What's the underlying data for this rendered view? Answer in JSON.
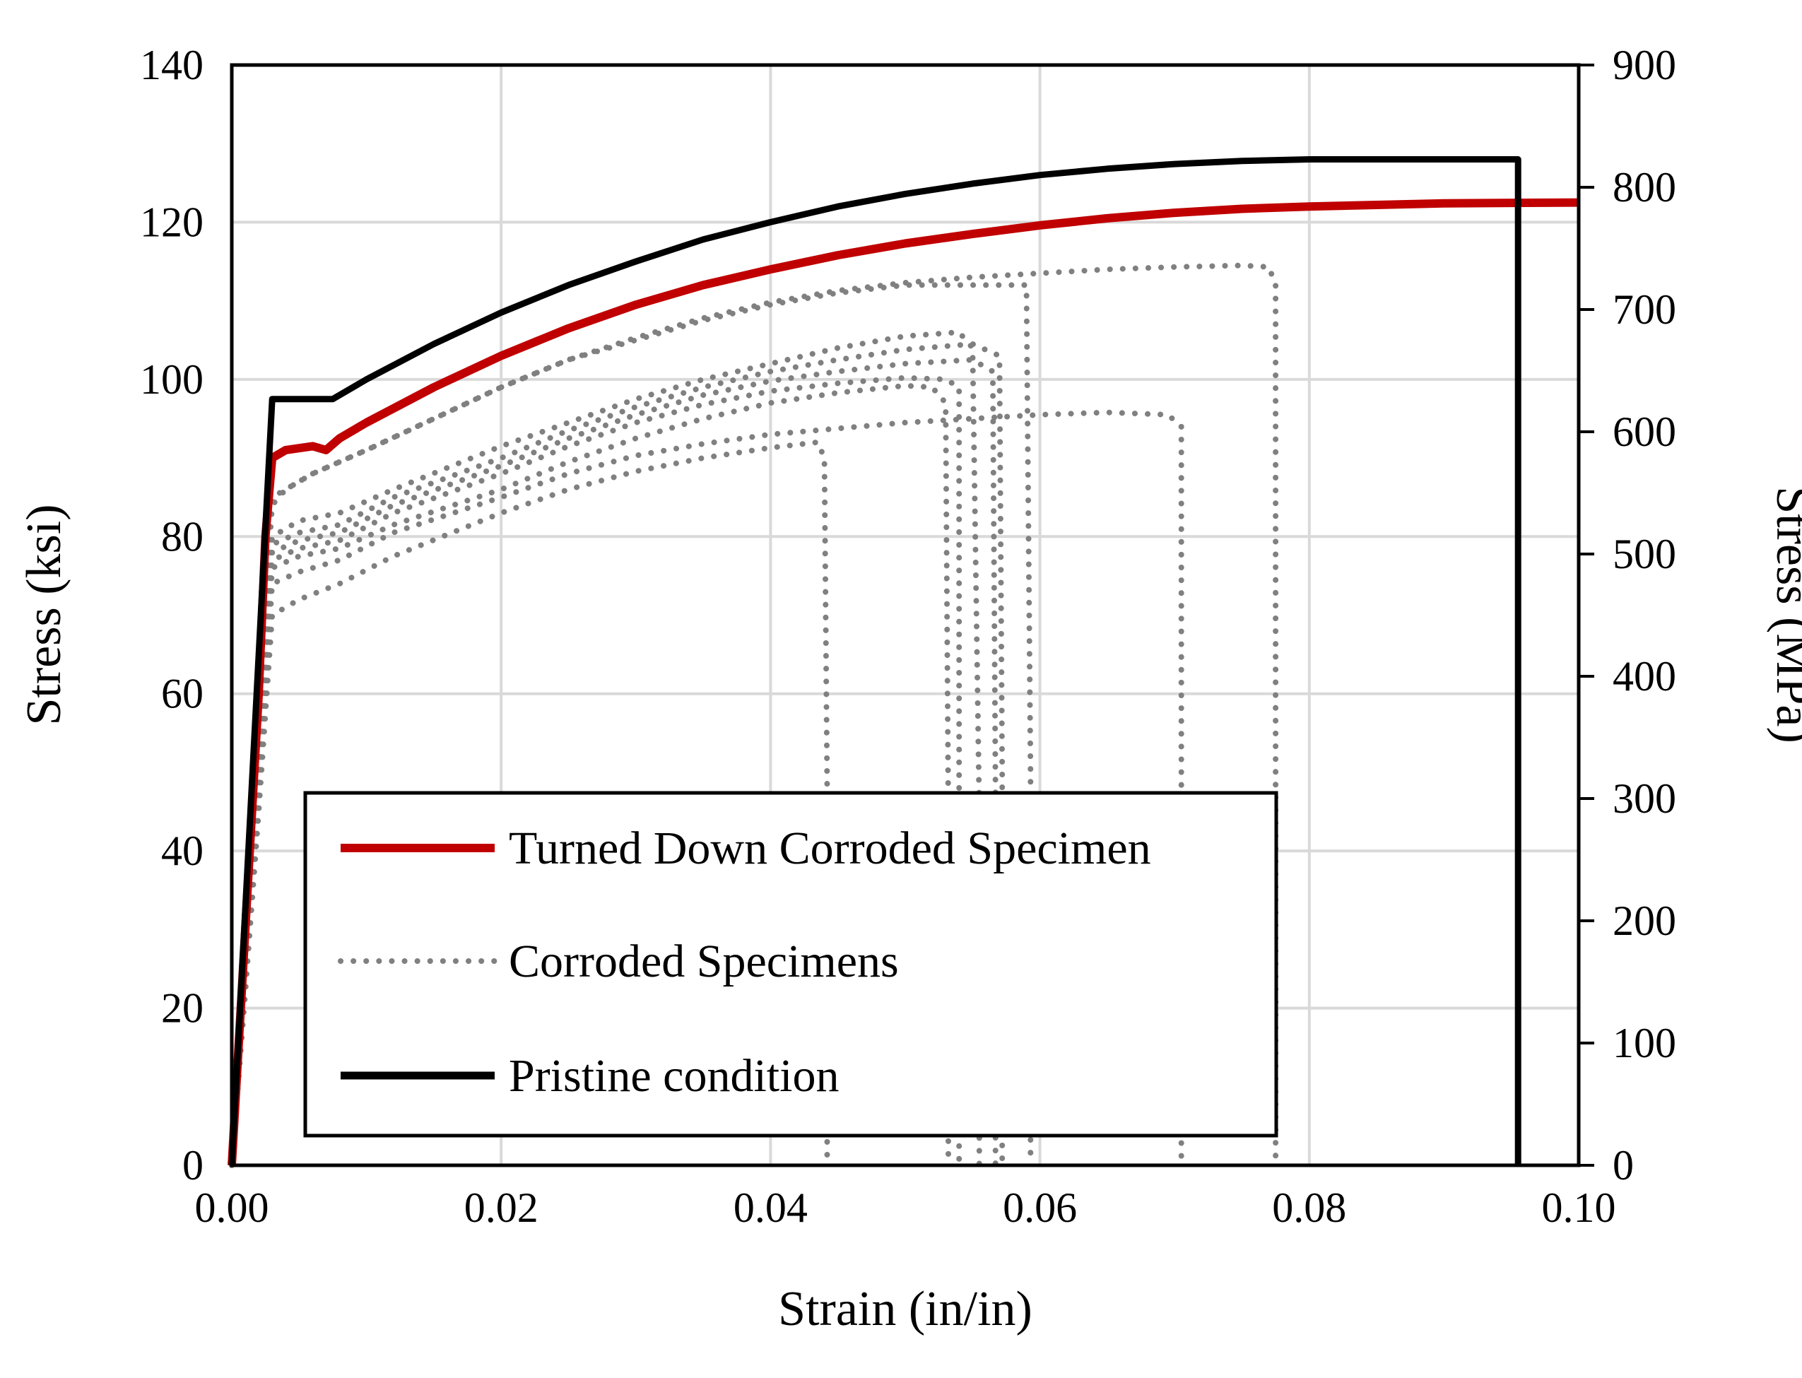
{
  "chart_data": {
    "type": "line",
    "title": "",
    "xlabel": "Strain (in/in)",
    "ylabel": "Stress (ksi)",
    "y2label": "Stress (MPa)",
    "xlim": [
      0,
      0.1
    ],
    "ylim": [
      0,
      140
    ],
    "y2lim": [
      0,
      900
    ],
    "grid": true,
    "legend_position": "bottom-left",
    "x_ticks": [
      "0.00",
      "0.02",
      "0.04",
      "0.06",
      "0.08",
      "0.10"
    ],
    "y_ticks": [
      "0",
      "20",
      "40",
      "60",
      "80",
      "100",
      "120",
      "140"
    ],
    "y2_ticks": [
      "0",
      "100",
      "200",
      "300",
      "400",
      "500",
      "600",
      "700",
      "800",
      "900"
    ],
    "series": [
      {
        "name": "Turned Down Corroded Specimen",
        "color": "#c00000",
        "style": "solid",
        "points": [
          [
            0,
            0
          ],
          [
            0.001,
            30
          ],
          [
            0.002,
            60
          ],
          [
            0.0025,
            80
          ],
          [
            0.003,
            90
          ],
          [
            0.004,
            91
          ],
          [
            0.006,
            91.5
          ],
          [
            0.007,
            91
          ],
          [
            0.008,
            92.5
          ],
          [
            0.01,
            94.5
          ],
          [
            0.015,
            99
          ],
          [
            0.02,
            103
          ],
          [
            0.025,
            106.5
          ],
          [
            0.03,
            109.5
          ],
          [
            0.035,
            112
          ],
          [
            0.04,
            114
          ],
          [
            0.045,
            115.8
          ],
          [
            0.05,
            117.3
          ],
          [
            0.055,
            118.5
          ],
          [
            0.06,
            119.6
          ],
          [
            0.065,
            120.5
          ],
          [
            0.07,
            121.2
          ],
          [
            0.075,
            121.7
          ],
          [
            0.08,
            122
          ],
          [
            0.085,
            122.2
          ],
          [
            0.09,
            122.4
          ],
          [
            0.1,
            122.5
          ]
        ]
      },
      {
        "name": "Corroded Specimens",
        "color": "#808080",
        "style": "dotted",
        "points": [
          [
            0,
            0
          ],
          [
            0.001,
            30
          ],
          [
            0.002,
            60
          ],
          [
            0.003,
            84
          ],
          [
            0.004,
            86
          ],
          [
            0.006,
            88
          ],
          [
            0.01,
            91
          ],
          [
            0.015,
            95
          ],
          [
            0.02,
            99
          ],
          [
            0.025,
            102.5
          ],
          [
            0.03,
            105
          ],
          [
            0.035,
            107.5
          ],
          [
            0.04,
            109.5
          ],
          [
            0.045,
            111
          ],
          [
            0.05,
            112
          ],
          [
            0.055,
            112
          ],
          [
            0.059,
            112
          ],
          [
            0.0593,
            50
          ],
          [
            0.0593,
            0
          ]
        ]
      },
      {
        "name": "",
        "color": "#808080",
        "style": "dotted",
        "points": [
          [
            0,
            0
          ],
          [
            0.001,
            30
          ],
          [
            0.002,
            55
          ],
          [
            0.003,
            80
          ],
          [
            0.005,
            82
          ],
          [
            0.008,
            83
          ],
          [
            0.012,
            86
          ],
          [
            0.02,
            91.5
          ],
          [
            0.025,
            94.5
          ],
          [
            0.03,
            97.5
          ],
          [
            0.035,
            100
          ],
          [
            0.04,
            102
          ],
          [
            0.045,
            104
          ],
          [
            0.05,
            105.5
          ],
          [
            0.054,
            106
          ],
          [
            0.055,
            104
          ],
          [
            0.0555,
            45
          ],
          [
            0.0555,
            0
          ]
        ]
      },
      {
        "name": "",
        "color": "#808080",
        "style": "dotted",
        "points": [
          [
            0,
            0
          ],
          [
            0.001,
            28
          ],
          [
            0.002,
            55
          ],
          [
            0.003,
            79
          ],
          [
            0.005,
            80.5
          ],
          [
            0.008,
            81.5
          ],
          [
            0.012,
            85
          ],
          [
            0.02,
            90
          ],
          [
            0.025,
            93.5
          ],
          [
            0.03,
            96.5
          ],
          [
            0.035,
            99
          ],
          [
            0.04,
            101
          ],
          [
            0.045,
            102.5
          ],
          [
            0.05,
            103.8
          ],
          [
            0.055,
            104.5
          ],
          [
            0.057,
            103
          ],
          [
            0.0572,
            50
          ],
          [
            0.0572,
            0
          ]
        ]
      },
      {
        "name": "",
        "color": "#808080",
        "style": "dotted",
        "points": [
          [
            0,
            0
          ],
          [
            0.001,
            28
          ],
          [
            0.002,
            52
          ],
          [
            0.003,
            78
          ],
          [
            0.005,
            79.5
          ],
          [
            0.008,
            80.5
          ],
          [
            0.012,
            84
          ],
          [
            0.02,
            89
          ],
          [
            0.025,
            92.5
          ],
          [
            0.03,
            95.5
          ],
          [
            0.035,
            98
          ],
          [
            0.04,
            99.8
          ],
          [
            0.045,
            101
          ],
          [
            0.05,
            102
          ],
          [
            0.055,
            102.5
          ],
          [
            0.0565,
            101
          ],
          [
            0.0567,
            48
          ],
          [
            0.0567,
            0
          ]
        ]
      },
      {
        "name": "",
        "color": "#808080",
        "style": "dotted",
        "points": [
          [
            0,
            0
          ],
          [
            0.001,
            26
          ],
          [
            0.002,
            50
          ],
          [
            0.003,
            77
          ],
          [
            0.005,
            78.5
          ],
          [
            0.008,
            79.5
          ],
          [
            0.012,
            83
          ],
          [
            0.02,
            88
          ],
          [
            0.025,
            91.5
          ],
          [
            0.03,
            94.5
          ],
          [
            0.035,
            96.8
          ],
          [
            0.04,
            98.5
          ],
          [
            0.045,
            99.5
          ],
          [
            0.05,
            100.2
          ],
          [
            0.053,
            100
          ],
          [
            0.054,
            99
          ],
          [
            0.054,
            48
          ],
          [
            0.054,
            0
          ]
        ]
      },
      {
        "name": "",
        "color": "#808080",
        "style": "dotted",
        "points": [
          [
            0,
            0
          ],
          [
            0.001,
            24
          ],
          [
            0.002,
            48
          ],
          [
            0.003,
            76
          ],
          [
            0.005,
            77.5
          ],
          [
            0.008,
            78.5
          ],
          [
            0.012,
            81.5
          ],
          [
            0.02,
            86
          ],
          [
            0.025,
            89.5
          ],
          [
            0.03,
            92.5
          ],
          [
            0.035,
            95
          ],
          [
            0.04,
            97
          ],
          [
            0.045,
            98.3
          ],
          [
            0.05,
            99.2
          ],
          [
            0.052,
            99
          ],
          [
            0.053,
            97
          ],
          [
            0.0532,
            45
          ],
          [
            0.0532,
            0
          ]
        ]
      },
      {
        "name": "",
        "color": "#808080",
        "style": "dotted",
        "points": [
          [
            0,
            0
          ],
          [
            0.001,
            22
          ],
          [
            0.002,
            45
          ],
          [
            0.003,
            70
          ],
          [
            0.005,
            72
          ],
          [
            0.008,
            74
          ],
          [
            0.012,
            77.5
          ],
          [
            0.02,
            83
          ],
          [
            0.025,
            86
          ],
          [
            0.03,
            88.3
          ],
          [
            0.035,
            90
          ],
          [
            0.04,
            91.3
          ],
          [
            0.0435,
            92
          ],
          [
            0.044,
            90
          ],
          [
            0.0442,
            48
          ],
          [
            0.0442,
            0
          ]
        ]
      },
      {
        "name": "",
        "color": "#808080",
        "style": "dotted",
        "points": [
          [
            0,
            0
          ],
          [
            0.001,
            24
          ],
          [
            0.002,
            48
          ],
          [
            0.003,
            74
          ],
          [
            0.005,
            75.5
          ],
          [
            0.008,
            77
          ],
          [
            0.012,
            80.5
          ],
          [
            0.02,
            85
          ],
          [
            0.025,
            88
          ],
          [
            0.03,
            90.3
          ],
          [
            0.035,
            91.8
          ],
          [
            0.04,
            93
          ],
          [
            0.05,
            94.5
          ],
          [
            0.06,
            95.5
          ],
          [
            0.065,
            95.8
          ],
          [
            0.0695,
            95.5
          ],
          [
            0.0705,
            94
          ],
          [
            0.0705,
            48
          ],
          [
            0.0705,
            0
          ]
        ]
      },
      {
        "name": "",
        "color": "#808080",
        "style": "dotted",
        "points": [
          [
            0,
            0
          ],
          [
            0.001,
            30
          ],
          [
            0.002,
            60
          ],
          [
            0.003,
            85
          ],
          [
            0.004,
            86
          ],
          [
            0.006,
            88
          ],
          [
            0.01,
            91
          ],
          [
            0.015,
            95
          ],
          [
            0.02,
            99
          ],
          [
            0.025,
            102.5
          ],
          [
            0.03,
            105.3
          ],
          [
            0.035,
            107.8
          ],
          [
            0.04,
            109.8
          ],
          [
            0.045,
            111.3
          ],
          [
            0.05,
            112.3
          ],
          [
            0.055,
            113
          ],
          [
            0.06,
            113.5
          ],
          [
            0.065,
            114
          ],
          [
            0.07,
            114.3
          ],
          [
            0.075,
            114.5
          ],
          [
            0.077,
            114.3
          ],
          [
            0.0775,
            112
          ],
          [
            0.0775,
            50
          ],
          [
            0.0775,
            0
          ]
        ]
      },
      {
        "name": "Pristine condition",
        "color": "#000000",
        "style": "solid",
        "points": [
          [
            0,
            0
          ],
          [
            0.003,
            97.5
          ],
          [
            0.0075,
            97.5
          ],
          [
            0.01,
            100
          ],
          [
            0.015,
            104.5
          ],
          [
            0.02,
            108.5
          ],
          [
            0.025,
            112
          ],
          [
            0.03,
            115
          ],
          [
            0.035,
            117.8
          ],
          [
            0.04,
            120
          ],
          [
            0.045,
            122
          ],
          [
            0.05,
            123.6
          ],
          [
            0.055,
            124.9
          ],
          [
            0.06,
            126
          ],
          [
            0.065,
            126.8
          ],
          [
            0.07,
            127.4
          ],
          [
            0.075,
            127.8
          ],
          [
            0.08,
            128
          ],
          [
            0.09,
            128
          ],
          [
            0.0955,
            128
          ],
          [
            0.0955,
            0
          ]
        ]
      }
    ],
    "legend": [
      {
        "label": "Turned Down Corroded Specimen",
        "color": "#c00000",
        "style": "solid"
      },
      {
        "label": "Corroded Specimens",
        "color": "#808080",
        "style": "dotted"
      },
      {
        "label": "Pristine condition",
        "color": "#000000",
        "style": "solid"
      }
    ]
  }
}
